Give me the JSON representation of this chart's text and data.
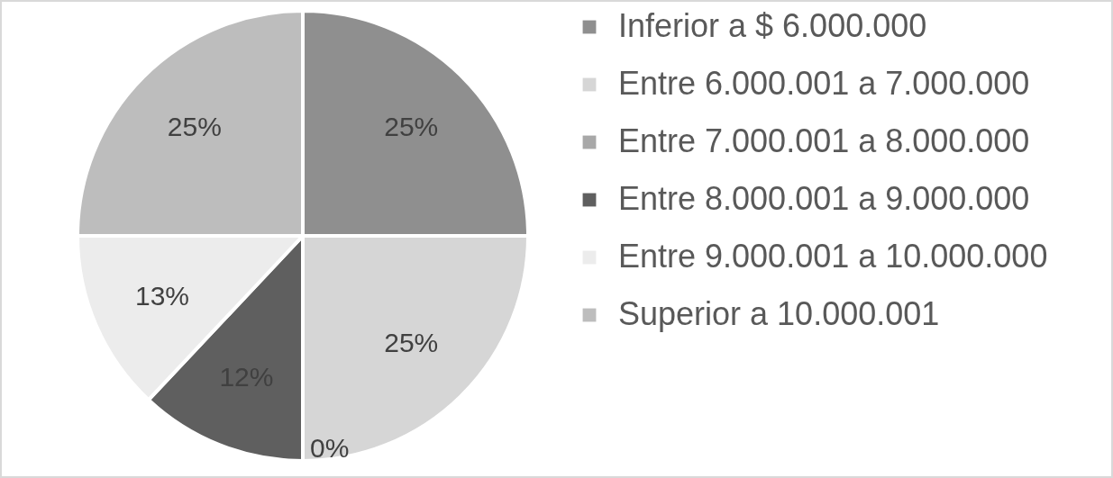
{
  "chart_data": {
    "type": "pie",
    "categories": [
      "Inferior a $ 6.000.000",
      "Entre 6.000.001 a 7.000.000",
      "Entre 7.000.001 a 8.000.000",
      "Entre 8.000.001 a 9.000.000",
      "Entre 9.000.001 a 10.000.000",
      "Superior a 10.000.001"
    ],
    "values": [
      25,
      25,
      0,
      12,
      13,
      25
    ],
    "value_labels": [
      "25%",
      "25%",
      "0%",
      "12%",
      "13%",
      "25%"
    ],
    "colors": [
      "#8f8f8f",
      "#d6d6d6",
      "#a8a8a8",
      "#5f5f5f",
      "#ececec",
      "#bdbdbd"
    ],
    "legend": "right"
  }
}
